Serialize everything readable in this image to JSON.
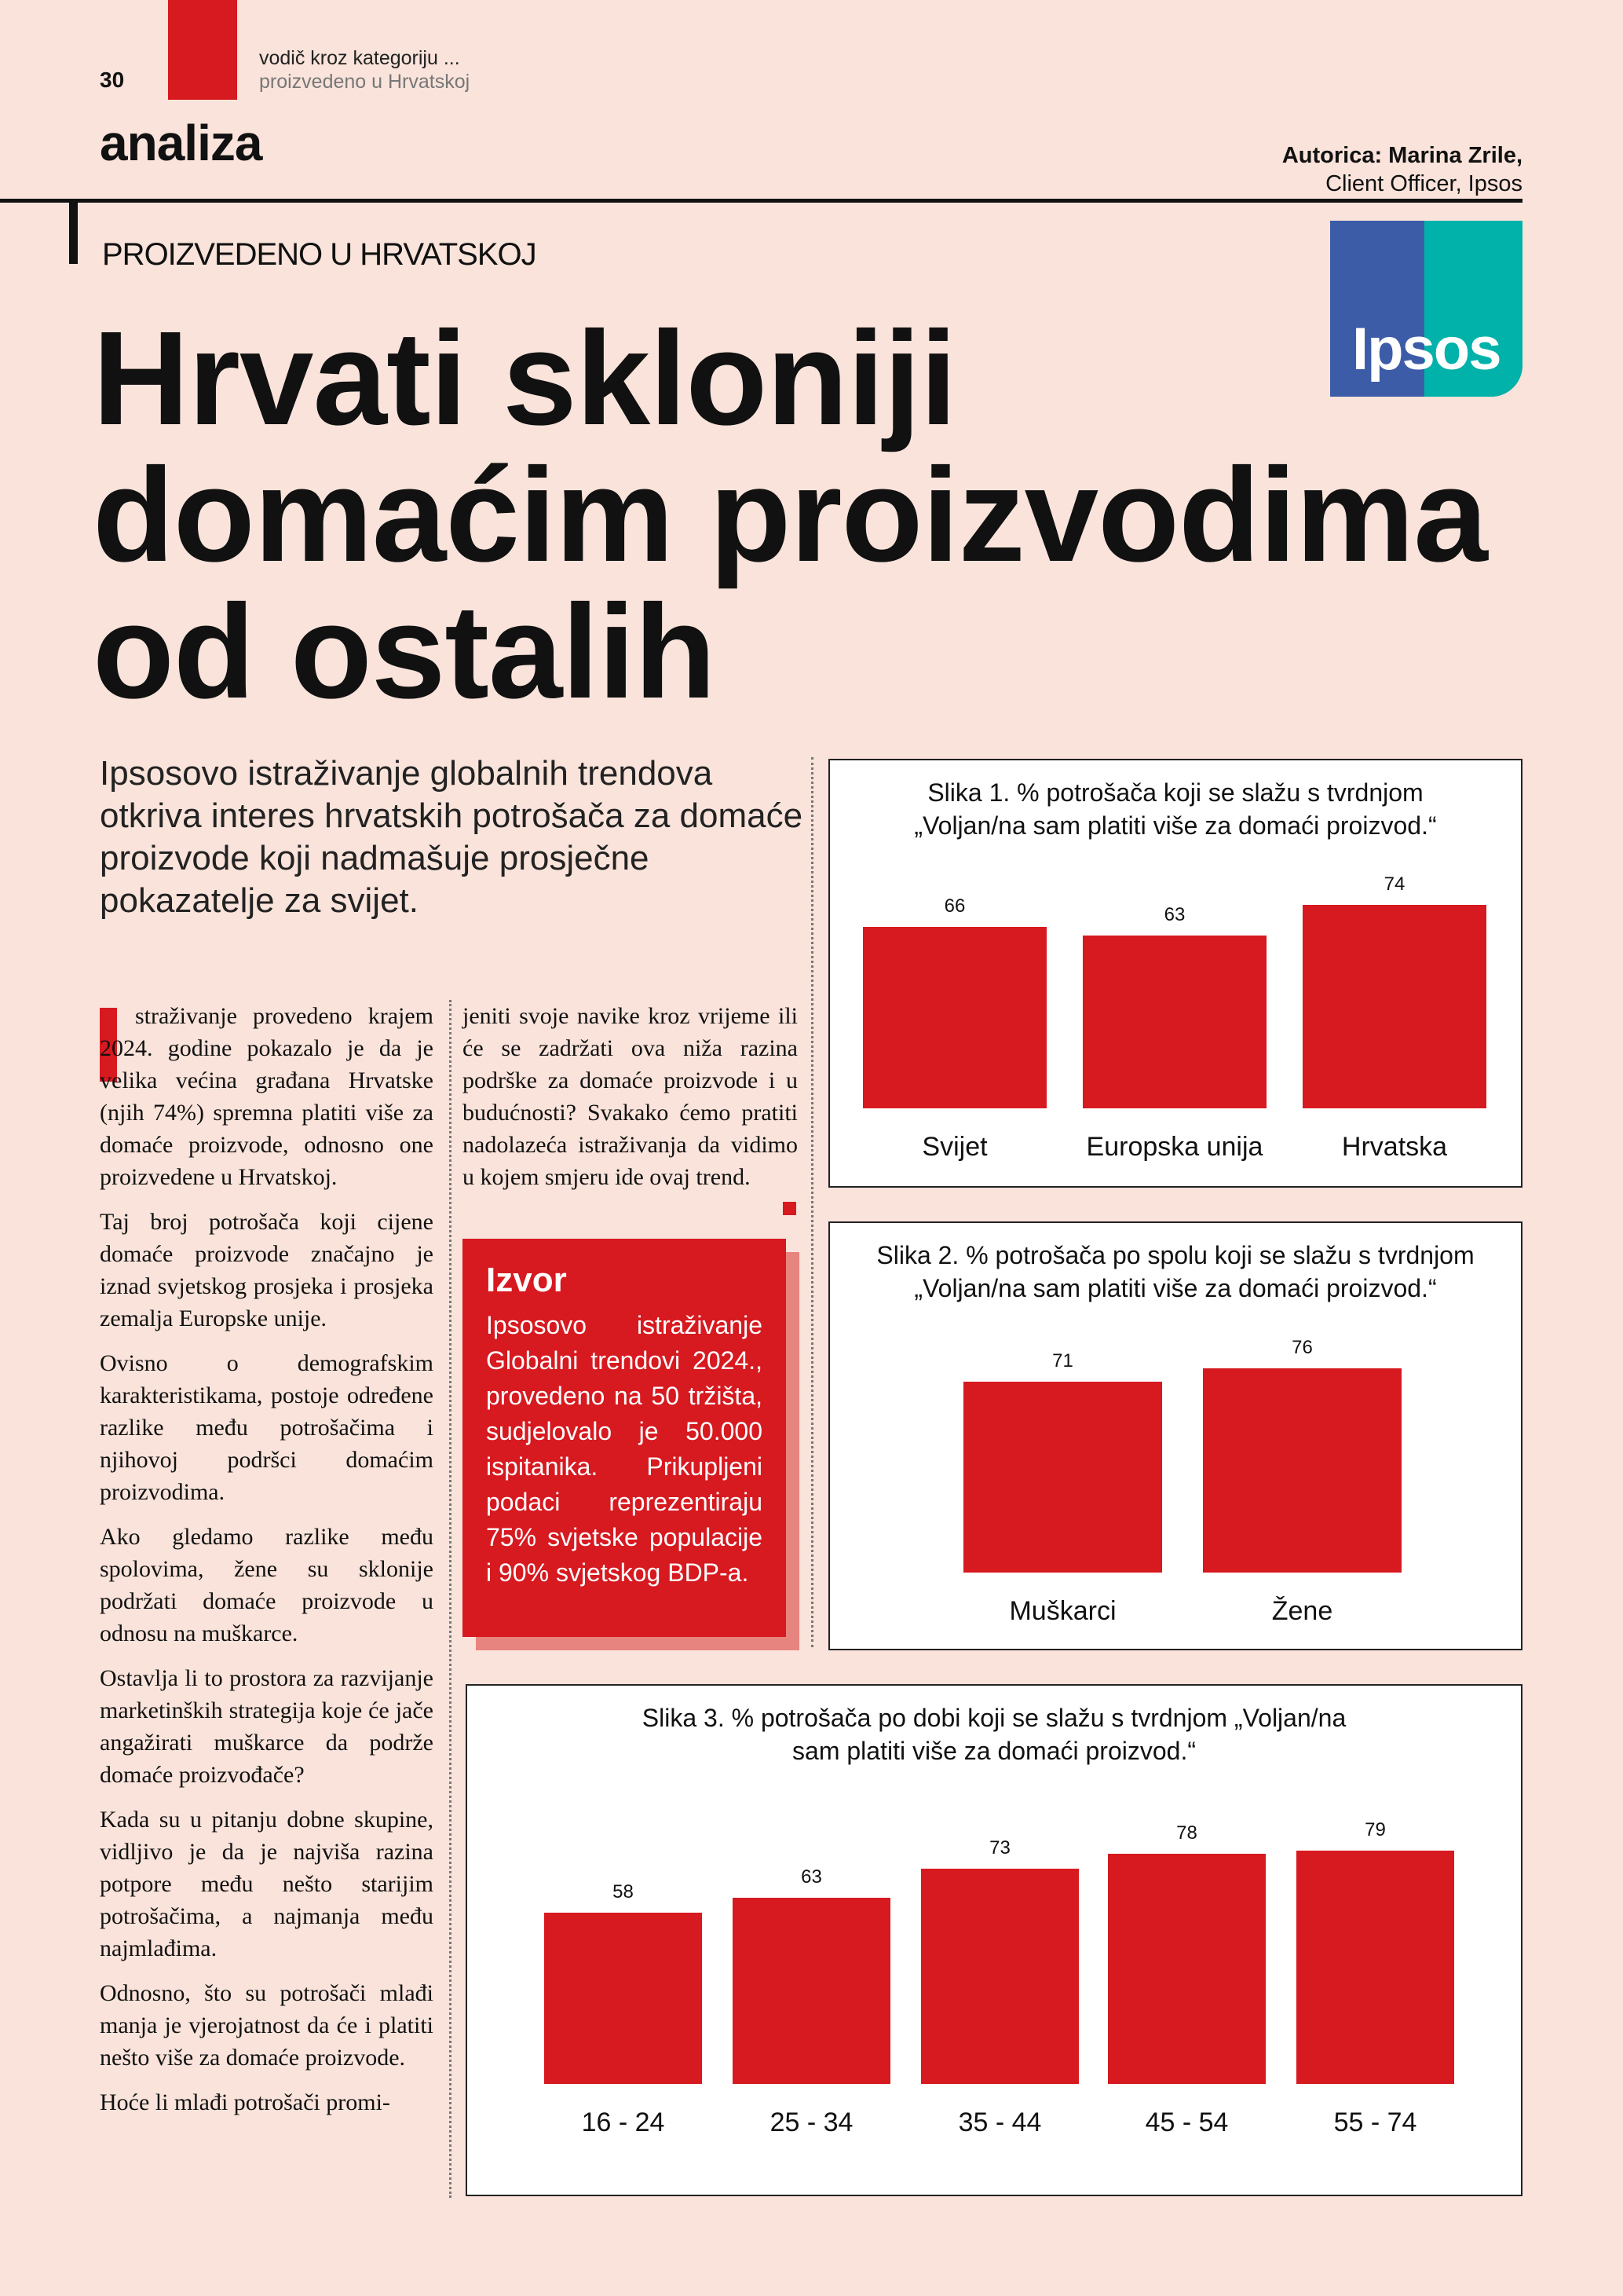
{
  "header": {
    "page_number": "30",
    "kicker": "vodič kroz kategoriju ...",
    "kicker_sub": "proizvedeno u Hrvatskoj",
    "section": "analiza",
    "author": "Autorica: Marina Zrile,",
    "author_role": "Client Officer, Ipsos",
    "rubric": "PROIZVEDENO U HRVATSKOJ",
    "logo_text": "Ipsos"
  },
  "headline": {
    "lines": [
      "Hrvati skloniji",
      "domaćim proizvodima",
      "od ostalih"
    ]
  },
  "lead": "Ipsosovo istraživanje globalnih trendova otkriva interes hrvatskih potrošača za domaće proizvode koji nadmašuje prosječne pokazatelje za svijet.",
  "body": {
    "col1": [
      "straživanje provedeno krajem 2024. godine pokazalo je da je velika većina građana Hrvatske (njih 74%) spremna platiti više za domaće proizvode, odnosno one proizvedene u Hrvatskoj.",
      "Taj broj potrošača koji cijene domaće proizvode značajno je iznad svjetskog prosjeka i prosjeka zemalja Europske unije.",
      "Ovisno o demografskim karakteristikama, postoje određene razlike među potrošačima i njihovoj podršci domaćim proizvodima.",
      "Ako gledamo razlike među spolovima, žene su sklonije podržati domaće proizvode u odnosu na muškarce.",
      "Ostavlja li to prostora za razvijanje marketinških strategija koje će jače angažirati muškarce da podrže domaće proizvođače?",
      "Kada su u pitanju dobne skupine, vidljivo je da je najviša razina potpore među nešto starijim potrošačima, a najmanja među najmlađima.",
      "Odnosno, što su potrošači mlađi manja je vjerojatnost da će i platiti nešto više za domaće proizvode.",
      "Hoće li mlađi potrošači promi-"
    ],
    "col2": [
      "jeniti svoje navike kroz vrijeme ili će se zadržati ova niža razina podrške za domaće proizvode i u budućnosti? Svakako ćemo pratiti nadolazeća istraživanja da vidimo u kojem smjeru ide ovaj trend."
    ]
  },
  "source_box": {
    "title": "Izvor",
    "text": "Ipsosovo istraživanje Globalni trendovi 2024., provedeno na 50 tržišta, sudjelovalo je 50.000 ispitanika. Prikupljeni podaci reprezentiraju 75% svjetske populacije i 90% svjetskog BDP-a."
  },
  "chart_data": [
    {
      "type": "bar",
      "title": "Slika 1. % potrošača koji se slažu s tvrdnjom „Voljan/na sam platiti više za domaći proizvod.“",
      "categories": [
        "Svijet",
        "Europska unija",
        "Hrvatska"
      ],
      "values": [
        66,
        63,
        74
      ],
      "color": "#d71920"
    },
    {
      "type": "bar",
      "title": "Slika 2. % potrošača po spolu koji se slažu s tvrdnjom „Voljan/na sam platiti više za domaći proizvod.“",
      "categories": [
        "Muškarci",
        "Žene"
      ],
      "values": [
        71,
        76
      ],
      "color": "#d71920"
    },
    {
      "type": "bar",
      "title": "Slika 3. % potrošača po dobi koji se slažu s tvrdnjom „Voljan/na sam platiti više za domaći proizvod.“",
      "categories": [
        "16 - 24",
        "25 - 34",
        "35 - 44",
        "45 - 54",
        "55 - 74"
      ],
      "values": [
        58,
        63,
        73,
        78,
        79
      ],
      "color": "#d71920"
    }
  ]
}
